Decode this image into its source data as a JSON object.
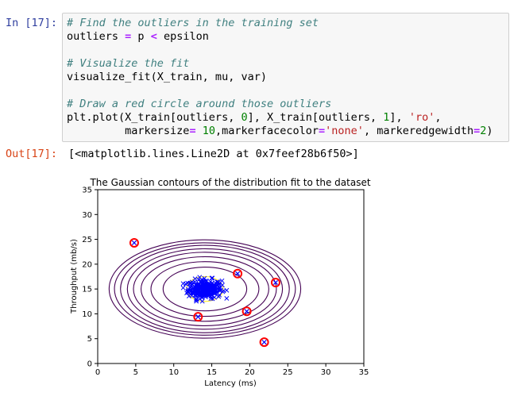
{
  "cell": {
    "in_prompt": "In [17]:",
    "out_prompt": "Out[17]:",
    "output_text": "[<matplotlib.lines.Line2D at 0x7feef28b6f50>]",
    "code_lines": [
      [
        {
          "t": "# Find the outliers in the training set",
          "c": "comment"
        }
      ],
      [
        {
          "t": "outliers ",
          "c": ""
        },
        {
          "t": "=",
          "c": "op"
        },
        {
          "t": " p ",
          "c": ""
        },
        {
          "t": "<",
          "c": "op"
        },
        {
          "t": " epsilon",
          "c": ""
        }
      ],
      [],
      [
        {
          "t": "# Visualize the fit",
          "c": "comment"
        }
      ],
      [
        {
          "t": "visualize_fit(X_train, mu, var)",
          "c": ""
        }
      ],
      [],
      [
        {
          "t": "# Draw a red circle around those outliers",
          "c": "comment"
        }
      ],
      [
        {
          "t": "plt.plot(X_train[outliers, ",
          "c": ""
        },
        {
          "t": "0",
          "c": "num"
        },
        {
          "t": "], X_train[outliers, ",
          "c": ""
        },
        {
          "t": "1",
          "c": "num"
        },
        {
          "t": "], ",
          "c": ""
        },
        {
          "t": "'ro'",
          "c": "str"
        },
        {
          "t": ",",
          "c": ""
        }
      ],
      [
        {
          "t": "         markersize",
          "c": ""
        },
        {
          "t": "=",
          "c": "op"
        },
        {
          "t": " ",
          "c": ""
        },
        {
          "t": "10",
          "c": "num"
        },
        {
          "t": ",markerfacecolor",
          "c": ""
        },
        {
          "t": "=",
          "c": "op"
        },
        {
          "t": "'none'",
          "c": "str"
        },
        {
          "t": ", markeredgewidth",
          "c": ""
        },
        {
          "t": "=",
          "c": "op"
        },
        {
          "t": "2",
          "c": "num"
        },
        {
          "t": ")",
          "c": ""
        }
      ]
    ]
  },
  "chart_data": {
    "type": "scatter",
    "title": "The Gaussian contours of the distribution fit to the dataset",
    "xlabel": "Latency (ms)",
    "ylabel": "Throughput (mb/s)",
    "xlim": [
      0,
      35
    ],
    "ylim": [
      0,
      35
    ],
    "xticks": [
      "0",
      "5",
      "10",
      "15",
      "20",
      "25",
      "30",
      "35"
    ],
    "yticks": [
      "0",
      "5",
      "10",
      "15",
      "20",
      "25",
      "30",
      "35"
    ],
    "grid": false,
    "gaussian_center": [
      14.1,
      15.0
    ],
    "contour_colors": {
      "inner": "#fde725",
      "outer": "#440154"
    },
    "contour_radii": [
      {
        "rx": 2.4,
        "ry": 2.5
      },
      {
        "rx": 5.5,
        "ry": 4.4
      },
      {
        "rx": 7.1,
        "ry": 5.5
      },
      {
        "rx": 8.4,
        "ry": 6.5
      },
      {
        "rx": 9.4,
        "ry": 7.4
      },
      {
        "rx": 10.2,
        "ry": 8.1
      },
      {
        "rx": 11.1,
        "ry": 8.8
      },
      {
        "rx": 11.9,
        "ry": 9.3
      },
      {
        "rx": 12.6,
        "ry": 9.9
      }
    ],
    "cluster": {
      "center": [
        14.1,
        15.0
      ],
      "spread": [
        1.1,
        0.95
      ],
      "count": 280
    },
    "outliers": [
      {
        "x": 4.8,
        "y": 24.3
      },
      {
        "x": 13.2,
        "y": 9.4
      },
      {
        "x": 18.4,
        "y": 18.1
      },
      {
        "x": 19.6,
        "y": 10.5
      },
      {
        "x": 21.9,
        "y": 4.3
      },
      {
        "x": 23.4,
        "y": 16.3
      }
    ],
    "data_color": "#0000ff",
    "outlier_ring_color": "#ff0000"
  }
}
